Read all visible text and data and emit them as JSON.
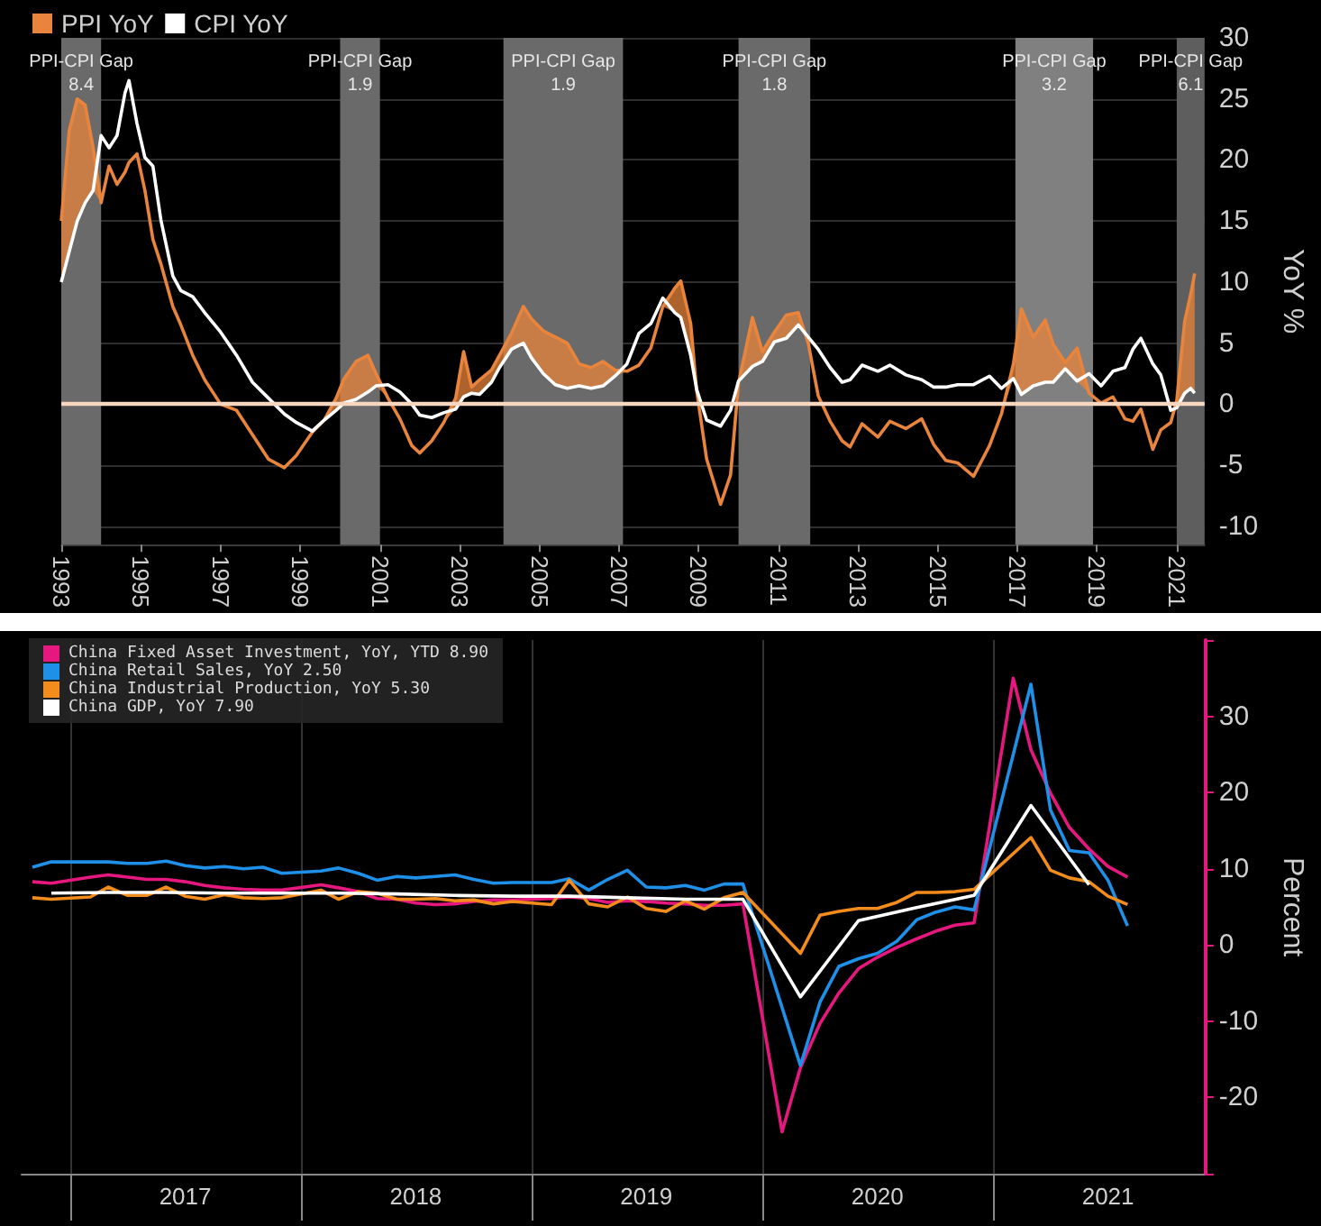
{
  "chart_data": [
    {
      "type": "line",
      "legend": "top left",
      "marker": "none",
      "grid": "y",
      "ylabel": "YoY %",
      "xlim": [
        1993,
        2021.7
      ],
      "xticks": [
        1993,
        1995,
        1997,
        1999,
        2001,
        2003,
        2005,
        2007,
        2009,
        2011,
        2013,
        2015,
        2017,
        2019,
        2021
      ],
      "ylim": [
        -11.5,
        30
      ],
      "yticks": [
        -10,
        -5,
        0,
        5,
        10,
        15,
        20,
        25,
        30
      ],
      "x": [
        1993.0,
        1993.2,
        1993.4,
        1993.6,
        1993.8,
        1994.0,
        1994.2,
        1994.4,
        1994.6,
        1994.7,
        1994.9,
        1995.1,
        1995.3,
        1995.5,
        1995.8,
        1996.0,
        1996.3,
        1996.6,
        1997.0,
        1997.4,
        1997.8,
        1998.2,
        1998.6,
        1998.9,
        1999.3,
        1999.6,
        1999.9,
        2000.1,
        2000.4,
        2000.7,
        2000.9,
        2001.2,
        2001.5,
        2001.8,
        2002.0,
        2002.3,
        2002.6,
        2002.9,
        2003.1,
        2003.3,
        2003.5,
        2003.8,
        2004.0,
        2004.3,
        2004.6,
        2004.8,
        2005.1,
        2005.4,
        2005.7,
        2006.0,
        2006.3,
        2006.6,
        2006.9,
        2007.2,
        2007.5,
        2007.8,
        2008.1,
        2008.4,
        2008.55,
        2008.8,
        2008.95,
        2009.2,
        2009.55,
        2009.8,
        2010.0,
        2010.35,
        2010.6,
        2010.9,
        2011.2,
        2011.5,
        2011.75,
        2012.0,
        2012.3,
        2012.6,
        2012.8,
        2013.1,
        2013.5,
        2013.8,
        2014.2,
        2014.6,
        2014.9,
        2015.2,
        2015.5,
        2015.9,
        2016.3,
        2016.6,
        2016.9,
        2017.1,
        2017.4,
        2017.7,
        2017.9,
        2018.2,
        2018.5,
        2018.8,
        2019.1,
        2019.4,
        2019.7,
        2019.9,
        2020.1,
        2020.4,
        2020.6,
        2020.85,
        2021.0,
        2021.2,
        2021.35,
        2021.45
      ],
      "series": [
        {
          "name": "PPI YoY",
          "color": "#e8843c",
          "values": [
            15.0,
            22.4,
            25.0,
            24.5,
            21.0,
            16.5,
            19.5,
            18.0,
            19.0,
            19.8,
            20.5,
            17.5,
            13.5,
            11.5,
            8.0,
            6.5,
            4.0,
            2.0,
            0.0,
            -0.5,
            -2.5,
            -4.5,
            -5.2,
            -4.2,
            -2.3,
            -1.3,
            0.5,
            2.1,
            3.5,
            4.0,
            2.5,
            0.5,
            -1.2,
            -3.4,
            -4.0,
            -3.0,
            -1.5,
            0.5,
            4.3,
            1.4,
            2.0,
            2.8,
            4.0,
            5.8,
            8.0,
            7.0,
            6.0,
            5.5,
            5.0,
            3.3,
            3.0,
            3.5,
            2.8,
            2.7,
            3.2,
            4.6,
            8.0,
            9.5,
            10.1,
            6.6,
            1.1,
            -4.5,
            -8.2,
            -5.8,
            1.7,
            7.1,
            4.3,
            5.9,
            7.3,
            7.5,
            5.0,
            0.7,
            -1.4,
            -3.0,
            -3.5,
            -1.6,
            -2.7,
            -1.4,
            -2.0,
            -1.2,
            -3.3,
            -4.6,
            -4.8,
            -5.9,
            -3.4,
            -0.8,
            3.3,
            7.8,
            5.5,
            6.9,
            4.9,
            3.4,
            4.6,
            0.9,
            0.1,
            0.6,
            -1.2,
            -1.4,
            -0.4,
            -3.7,
            -2.1,
            -1.5,
            0.3,
            6.8,
            9.0,
            10.7
          ],
          "lower": [
            10.0,
            12.5,
            15.0,
            16.5,
            17.5,
            16.5,
            19.5,
            18.0,
            19.0,
            19.8,
            20.5,
            17.5,
            13.5,
            11.5,
            8.0,
            6.5,
            4.0,
            2.0,
            0.0,
            -0.5,
            -2.5,
            -4.5,
            -5.2,
            -4.2,
            -2.3,
            -1.3,
            -0.5,
            0.1,
            0.4,
            1.0,
            1.5,
            0.5,
            -1.2,
            -3.4,
            -4.0,
            -3.0,
            -1.5,
            -0.4,
            0.6,
            0.9,
            0.8,
            1.8,
            3.0,
            4.5,
            5.0,
            3.8,
            2.5,
            1.6,
            1.3,
            1.5,
            1.3,
            1.5,
            2.3,
            2.7,
            3.2,
            4.6,
            8.0,
            7.5,
            7.1,
            4.0,
            1.1,
            -4.5,
            -8.2,
            -5.8,
            1.7,
            3.1,
            3.5,
            5.1,
            5.4,
            6.5,
            5.0,
            0.7,
            -1.4,
            -3.0,
            -3.5,
            -1.6,
            -2.7,
            -1.4,
            -2.0,
            -1.2,
            -3.3,
            -4.6,
            -4.8,
            -5.9,
            -3.4,
            -0.8,
            2.1,
            0.8,
            1.5,
            1.8,
            1.8,
            2.9,
            1.9,
            0.9,
            0.1,
            0.6,
            -1.2,
            -1.4,
            -0.4,
            -3.7,
            -2.1,
            -1.5,
            -0.3,
            0.9,
            1.3,
            0.9
          ],
          "upper": [
            15.0,
            22.4,
            25.0,
            24.5,
            21.0,
            16.5,
            19.5,
            18.0,
            19.0,
            19.8,
            20.5,
            17.5,
            13.5,
            11.5,
            8.0,
            6.5,
            4.0,
            2.0,
            0.0,
            -0.5,
            -2.5,
            -4.5,
            -5.2,
            -4.2,
            -2.3,
            -1.3,
            0.5,
            2.1,
            3.5,
            4.0,
            2.5,
            0.5,
            -1.2,
            -3.4,
            -4.0,
            -3.0,
            -1.5,
            0.5,
            4.3,
            1.4,
            2.0,
            2.8,
            4.0,
            5.8,
            8.0,
            7.0,
            6.0,
            5.5,
            5.0,
            3.3,
            3.0,
            3.5,
            2.8,
            2.7,
            3.2,
            4.6,
            8.0,
            9.5,
            10.1,
            6.6,
            1.1,
            -4.5,
            -8.2,
            -5.8,
            1.7,
            7.1,
            4.3,
            5.9,
            7.3,
            7.5,
            5.0,
            0.7,
            -1.4,
            -3.0,
            -3.5,
            -1.6,
            -2.7,
            -1.4,
            -2.0,
            -1.2,
            -3.3,
            -4.6,
            -4.8,
            -5.9,
            -3.4,
            -0.8,
            3.3,
            7.8,
            5.5,
            6.9,
            4.9,
            3.4,
            4.6,
            0.9,
            0.1,
            0.6,
            -1.2,
            -1.4,
            -0.4,
            -3.7,
            -2.1,
            -1.5,
            0.3,
            6.8,
            9.0,
            10.7
          ]
        },
        {
          "name": "CPI YoY",
          "color": "#ffffff",
          "values": [
            10.0,
            12.5,
            15.0,
            16.5,
            17.5,
            22.0,
            21.0,
            22.0,
            25.5,
            26.5,
            23.0,
            20.2,
            19.5,
            15.1,
            10.5,
            9.3,
            8.8,
            7.5,
            5.9,
            4.0,
            1.8,
            0.5,
            -0.8,
            -1.5,
            -2.2,
            -1.3,
            -0.5,
            0.1,
            0.4,
            1.0,
            1.5,
            1.6,
            1.0,
            0.0,
            -0.9,
            -1.1,
            -0.7,
            -0.4,
            0.6,
            0.9,
            0.8,
            1.8,
            3.0,
            4.5,
            5.0,
            3.8,
            2.5,
            1.6,
            1.3,
            1.5,
            1.3,
            1.5,
            2.3,
            3.3,
            5.8,
            6.6,
            8.7,
            7.5,
            7.1,
            4.0,
            1.2,
            -1.3,
            -1.8,
            -0.5,
            1.9,
            3.1,
            3.5,
            5.1,
            5.4,
            6.5,
            5.5,
            4.5,
            3.0,
            1.8,
            2.0,
            3.2,
            2.7,
            3.2,
            2.4,
            2.0,
            1.4,
            1.4,
            1.6,
            1.6,
            2.3,
            1.3,
            2.1,
            0.8,
            1.5,
            1.8,
            1.8,
            2.9,
            1.9,
            2.5,
            1.5,
            2.7,
            3.0,
            4.5,
            5.4,
            3.3,
            2.4,
            -0.5,
            -0.3,
            0.9,
            1.3,
            0.9
          ]
        }
      ],
      "bands": [
        {
          "axis": "x",
          "from": 1993.0,
          "to": 1994.0,
          "label": "PPI-CPI Gap\n8.4",
          "color": "#6a6a6a"
        },
        {
          "axis": "x",
          "from": 2000.0,
          "to": 2001.0,
          "label": "PPI-CPI Gap\n1.9",
          "color": "#6a6a6a"
        },
        {
          "axis": "x",
          "from": 2004.1,
          "to": 2007.1,
          "label": "PPI-CPI Gap\n1.9",
          "color": "#6a6a6a"
        },
        {
          "axis": "x",
          "from": 2010.0,
          "to": 2011.8,
          "label": "PPI-CPI Gap\n1.8",
          "color": "#6a6a6a"
        },
        {
          "axis": "x",
          "from": 2016.95,
          "to": 2018.9,
          "label": "PPI-CPI Gap\n3.2",
          "color": "#808080"
        },
        {
          "axis": "x",
          "from": 2021.0,
          "to": 2021.7,
          "label": "PPI-CPI Gap\n6.1",
          "color": "#5e5e5e"
        }
      ],
      "ref_lines": [
        {
          "axis": "y",
          "value": 0,
          "color": "#f8d6bf"
        }
      ]
    },
    {
      "type": "line",
      "legend": "top left",
      "marker": "none",
      "grid": "x",
      "ylabel": "Percent",
      "xlim": [
        "2016-10-15",
        "2021-12-01"
      ],
      "xticks": [
        {
          "value": "2017-01-01",
          "label": null
        },
        {
          "value": "2017-07-01",
          "label": "2017"
        },
        {
          "value": "2018-01-01",
          "label": null
        },
        {
          "value": "2018-07-01",
          "label": "2018"
        },
        {
          "value": "2019-01-01",
          "label": null
        },
        {
          "value": "2019-07-01",
          "label": "2019"
        },
        {
          "value": "2020-01-01",
          "label": null
        },
        {
          "value": "2020-07-01",
          "label": "2020"
        },
        {
          "value": "2021-01-01",
          "label": null
        },
        {
          "value": "2021-07-01",
          "label": "2021"
        }
      ],
      "ylim": [
        -30,
        40
      ],
      "yticks": [
        {
          "value": -30,
          "label": null
        },
        -20,
        -10,
        0,
        10,
        20,
        30,
        {
          "value": 40,
          "label": null
        }
      ],
      "series": [
        {
          "name": "China Fixed Asset Investment, YoY, YTD 8.90",
          "color": "#e6177f",
          "x": [
            "2016-11",
            "2016-12",
            "2017-02",
            "2017-03",
            "2017-04",
            "2017-05",
            "2017-06",
            "2017-07",
            "2017-08",
            "2017-09",
            "2017-10",
            "2017-11",
            "2017-12",
            "2018-02",
            "2018-03",
            "2018-04",
            "2018-05",
            "2018-06",
            "2018-07",
            "2018-08",
            "2018-09",
            "2018-10",
            "2018-11",
            "2018-12",
            "2019-02",
            "2019-03",
            "2019-04",
            "2019-05",
            "2019-06",
            "2019-07",
            "2019-08",
            "2019-09",
            "2019-10",
            "2019-11",
            "2019-12",
            "2020-02",
            "2020-03",
            "2020-04",
            "2020-05",
            "2020-06",
            "2020-07",
            "2020-08",
            "2020-09",
            "2020-10",
            "2020-11",
            "2020-12",
            "2021-02",
            "2021-03",
            "2021-04",
            "2021-05",
            "2021-06",
            "2021-07",
            "2021-08"
          ],
          "values": [
            8.3,
            8.1,
            8.9,
            9.2,
            8.9,
            8.6,
            8.6,
            8.3,
            7.8,
            7.5,
            7.3,
            7.2,
            7.2,
            7.9,
            7.5,
            7.0,
            6.1,
            6.0,
            5.5,
            5.3,
            5.4,
            5.7,
            5.9,
            5.9,
            6.1,
            6.3,
            6.1,
            5.6,
            5.8,
            5.7,
            5.5,
            5.4,
            5.2,
            5.2,
            5.4,
            -24.5,
            -16.1,
            -10.3,
            -6.3,
            -3.1,
            -1.6,
            -0.3,
            0.8,
            1.8,
            2.6,
            2.9,
            35.0,
            25.6,
            19.9,
            15.4,
            12.6,
            10.3,
            8.9
          ]
        },
        {
          "name": "China Retail Sales, YoY 2.50",
          "color": "#1e90e8",
          "x": [
            "2016-11",
            "2016-12",
            "2017-02",
            "2017-03",
            "2017-04",
            "2017-05",
            "2017-06",
            "2017-07",
            "2017-08",
            "2017-09",
            "2017-10",
            "2017-11",
            "2017-12",
            "2018-02",
            "2018-03",
            "2018-04",
            "2018-05",
            "2018-06",
            "2018-07",
            "2018-08",
            "2018-09",
            "2018-10",
            "2018-11",
            "2018-12",
            "2019-02",
            "2019-03",
            "2019-04",
            "2019-05",
            "2019-06",
            "2019-07",
            "2019-08",
            "2019-09",
            "2019-10",
            "2019-11",
            "2019-12",
            "2020-03",
            "2020-04",
            "2020-05",
            "2020-06",
            "2020-07",
            "2020-08",
            "2020-09",
            "2020-10",
            "2020-11",
            "2020-12",
            "2021-03",
            "2021-04",
            "2021-05",
            "2021-06",
            "2021-07",
            "2021-08"
          ],
          "values": [
            10.2,
            10.9,
            10.9,
            10.9,
            10.7,
            10.7,
            11.0,
            10.4,
            10.1,
            10.3,
            10.0,
            10.2,
            9.4,
            9.7,
            10.1,
            9.4,
            8.5,
            9.0,
            8.8,
            9.0,
            9.2,
            8.6,
            8.1,
            8.2,
            8.2,
            8.7,
            7.2,
            8.6,
            9.8,
            7.6,
            7.5,
            7.8,
            7.2,
            8.0,
            8.0,
            -15.8,
            -7.5,
            -2.8,
            -1.8,
            -1.1,
            0.5,
            3.3,
            4.3,
            5.0,
            4.6,
            34.2,
            17.7,
            12.4,
            12.1,
            8.5,
            2.5
          ]
        },
        {
          "name": "China Industrial Production, YoY 5.30",
          "color": "#f28c1c",
          "x": [
            "2016-11",
            "2016-12",
            "2017-02",
            "2017-03",
            "2017-04",
            "2017-05",
            "2017-06",
            "2017-07",
            "2017-08",
            "2017-09",
            "2017-10",
            "2017-11",
            "2017-12",
            "2018-02",
            "2018-03",
            "2018-04",
            "2018-05",
            "2018-06",
            "2018-07",
            "2018-08",
            "2018-09",
            "2018-10",
            "2018-11",
            "2018-12",
            "2019-02",
            "2019-03",
            "2019-04",
            "2019-05",
            "2019-06",
            "2019-07",
            "2019-08",
            "2019-09",
            "2019-10",
            "2019-11",
            "2019-12",
            "2020-03",
            "2020-04",
            "2020-05",
            "2020-06",
            "2020-07",
            "2020-08",
            "2020-09",
            "2020-10",
            "2020-11",
            "2020-12",
            "2021-03",
            "2021-04",
            "2021-05",
            "2021-06",
            "2021-07",
            "2021-08"
          ],
          "values": [
            6.2,
            6.0,
            6.3,
            7.6,
            6.5,
            6.5,
            7.6,
            6.4,
            6.0,
            6.6,
            6.2,
            6.1,
            6.2,
            7.2,
            6.0,
            7.0,
            6.8,
            6.0,
            6.0,
            6.1,
            5.8,
            5.9,
            5.4,
            5.7,
            5.3,
            8.5,
            5.4,
            5.0,
            6.3,
            4.8,
            4.4,
            5.8,
            4.7,
            6.2,
            6.9,
            -1.1,
            3.9,
            4.4,
            4.8,
            4.8,
            5.6,
            6.9,
            6.9,
            7.0,
            7.3,
            14.1,
            9.8,
            8.8,
            8.3,
            6.4,
            5.3
          ]
        },
        {
          "name": "China GDP, YoY 7.90",
          "color": "#ffffff",
          "x": [
            "2016-12",
            "2017-03",
            "2017-06",
            "2017-09",
            "2017-12",
            "2018-03",
            "2018-06",
            "2018-09",
            "2018-12",
            "2019-03",
            "2019-06",
            "2019-09",
            "2019-12",
            "2020-03",
            "2020-06",
            "2020-09",
            "2020-12",
            "2021-03",
            "2021-06"
          ],
          "values": [
            6.8,
            6.9,
            6.9,
            6.8,
            6.8,
            6.8,
            6.7,
            6.5,
            6.4,
            6.4,
            6.2,
            6.0,
            6.0,
            -6.8,
            3.2,
            4.9,
            6.5,
            18.3,
            7.9
          ]
        }
      ]
    }
  ]
}
